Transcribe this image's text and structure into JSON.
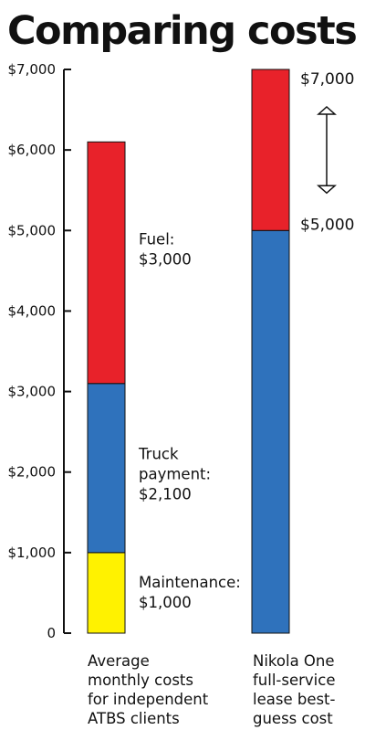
{
  "title": "Comparing costs",
  "colors": {
    "fuel": "#e8222a",
    "truck_payment": "#2f72bc",
    "maintenance": "#fff200",
    "axis": "#111111"
  },
  "chart_data": {
    "type": "bar",
    "stacked": true,
    "title": "Comparing costs",
    "xlabel": "",
    "ylabel": "",
    "ylim": [
      0,
      7000
    ],
    "yticks": [
      "0",
      "$1,000",
      "$2,000",
      "$3,000",
      "$4,000",
      "$5,000",
      "$6,000",
      "$7,000"
    ],
    "grid": false,
    "categories": [
      "Average monthly costs for independent ATBS clients",
      "Nikola One full-service lease best-guess cost"
    ],
    "bars": [
      {
        "segments": [
          {
            "value": 1000,
            "color": "#fff200",
            "label_lines": [
              "Maintenance:",
              "$1,000"
            ]
          },
          {
            "value": 2100,
            "color": "#2f72bc",
            "label_lines": [
              "Truck",
              "payment:",
              "$2,100"
            ]
          },
          {
            "value": 3000,
            "color": "#e8222a",
            "label_lines": [
              "Fuel:",
              "$3,000"
            ]
          }
        ]
      },
      {
        "segments": [
          {
            "value": 5000,
            "color": "#2f72bc"
          },
          {
            "value": 2000,
            "color": "#e8222a"
          }
        ],
        "range_labels": [
          "$5,000",
          "$7,000"
        ]
      }
    ]
  },
  "category_labels": [
    [
      "Average",
      "monthly costs",
      "for independent",
      "ATBS clients"
    ],
    [
      "Nikola One",
      "full-service",
      "lease best-",
      "guess cost"
    ]
  ]
}
